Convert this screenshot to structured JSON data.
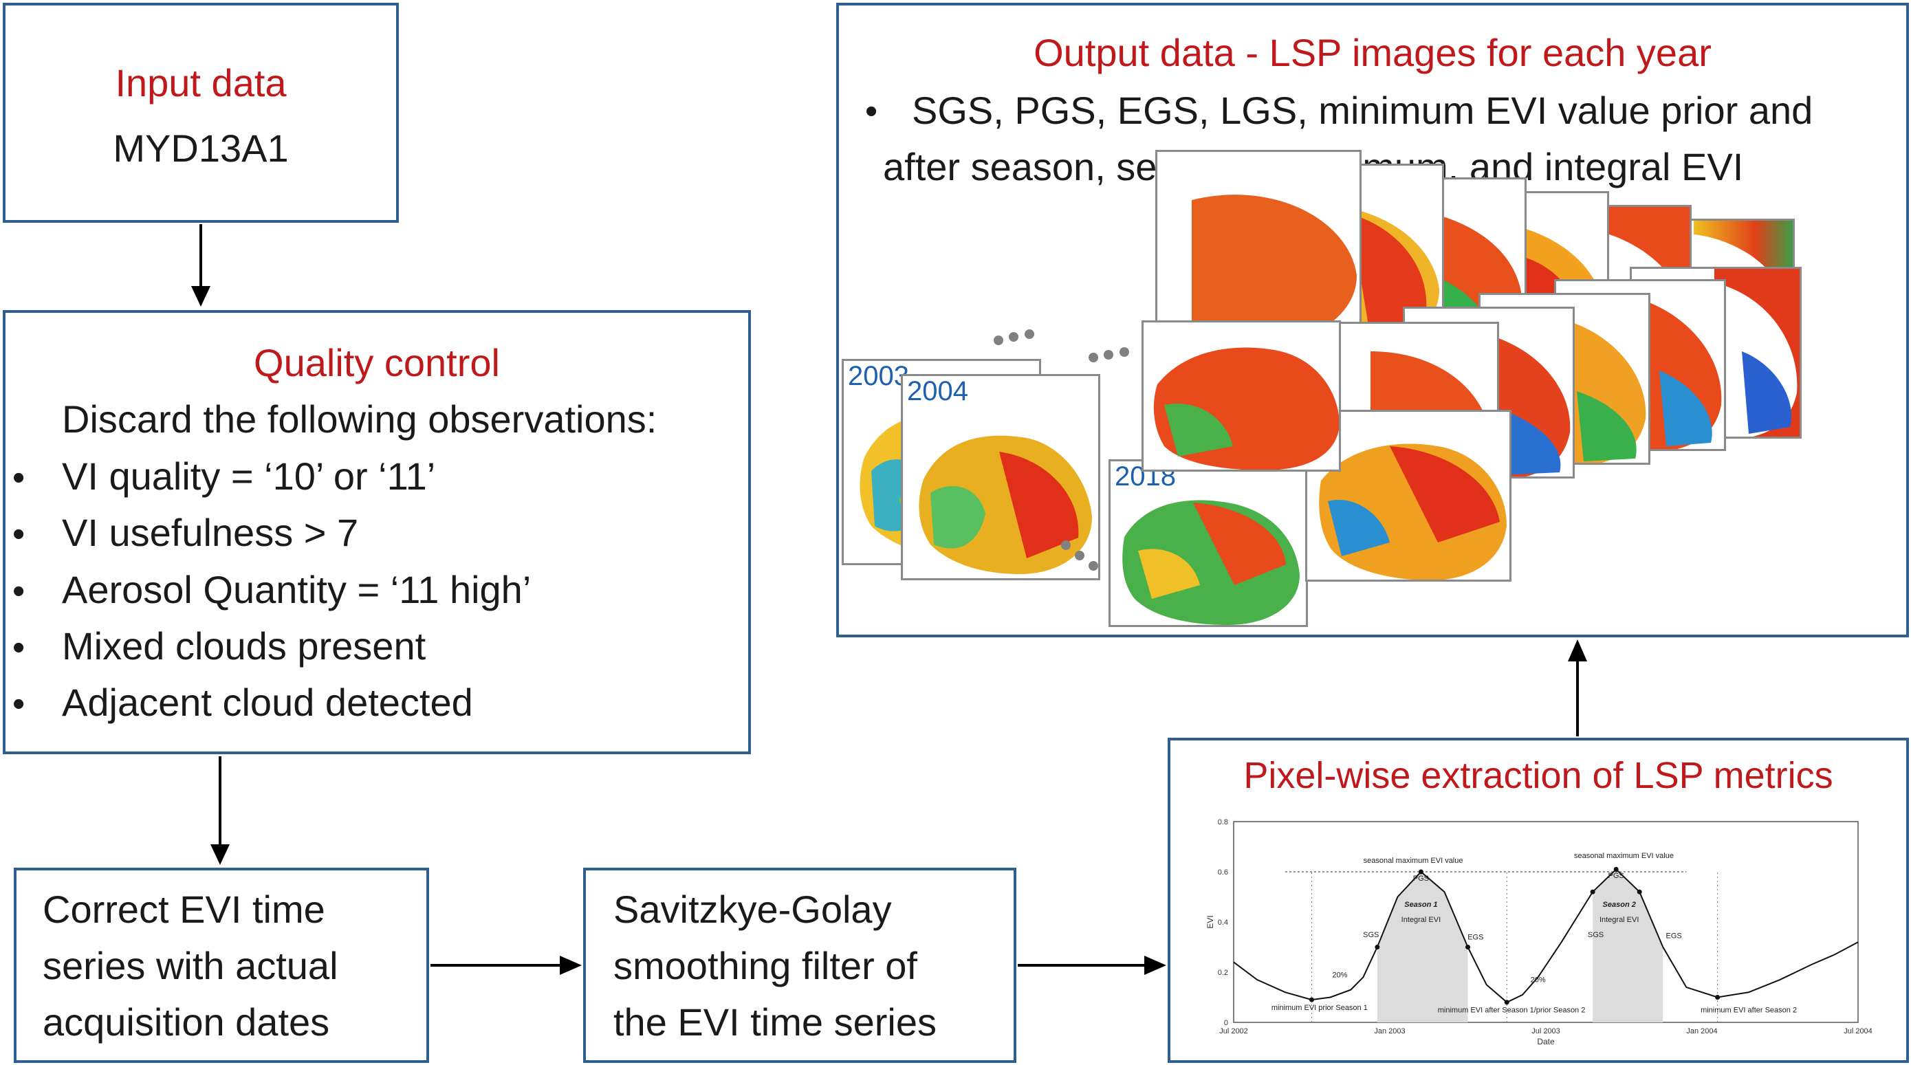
{
  "input": {
    "title": "Input data",
    "subtitle": "MYD13A1"
  },
  "quality": {
    "title": "Quality  control",
    "intro": "Discard the following observations:",
    "items": [
      "VI quality = ‘10’ or ‘11’",
      "VI usefulness > 7",
      "Aerosol Quantity = ‘11 high’",
      "Mixed clouds present",
      "Adjacent cloud detected"
    ]
  },
  "correct": {
    "lines": [
      "Correct EVI time",
      "series with actual",
      "acquisition dates"
    ]
  },
  "smooth": {
    "lines": [
      "Savitzkye-Golay",
      "smoothing filter of",
      "the EVI time series"
    ]
  },
  "output": {
    "title": "Output data - LSP images for each year",
    "bullet_lines": [
      "SGS, PGS, EGS, LGS, minimum EVI value prior and",
      "after season, seasonal maximum, and integral EVI"
    ],
    "years": [
      "2003",
      "2004",
      "2018"
    ]
  },
  "pixel": {
    "title": "Pixel-wise extraction of LSP metrics"
  },
  "chart_data": {
    "type": "line",
    "title": "",
    "xlabel": "Date",
    "ylabel": "EVI",
    "x_ticks": [
      "Jul 2002",
      "Jan 2003",
      "Jul 2003",
      "Jan 2004",
      "Jul 2004"
    ],
    "y_ticks": [
      "0",
      "0.2",
      "0.4",
      "0.6",
      "0.8"
    ],
    "ylim": [
      0,
      0.8
    ],
    "series": [
      {
        "name": "EVI",
        "x": [
          0,
          0.15,
          0.33,
          0.5,
          0.62,
          0.75,
          0.83,
          0.92,
          1.05,
          1.2,
          1.35,
          1.5,
          1.62,
          1.75,
          1.85,
          1.95,
          2.1,
          2.3,
          2.45,
          2.6,
          2.75,
          2.9,
          3.1,
          3.3,
          3.5,
          3.7,
          3.85,
          4.0
        ],
        "y": [
          0.24,
          0.17,
          0.12,
          0.09,
          0.1,
          0.13,
          0.18,
          0.3,
          0.5,
          0.6,
          0.52,
          0.3,
          0.15,
          0.08,
          0.11,
          0.18,
          0.32,
          0.52,
          0.61,
          0.52,
          0.3,
          0.14,
          0.1,
          0.12,
          0.17,
          0.23,
          0.27,
          0.32
        ]
      }
    ],
    "annotations": [
      "seasonal maximum EVI value",
      "seasonal maximum EVI value",
      "PGS",
      "PGS",
      "SGS",
      "SGS",
      "EGS",
      "EGS",
      "20%",
      "20%",
      "Season 1",
      "Integral EVI",
      "Season 2",
      "Integral EVI",
      "minimum EVI prior Season 1",
      "minimum EVI after Season 1/prior Season 2",
      "minimum EVI after Season 2"
    ]
  },
  "colors": {
    "box_border": "#2f5f8f",
    "title_red": "#c0191c",
    "year_blue": "#1f5fb0"
  }
}
